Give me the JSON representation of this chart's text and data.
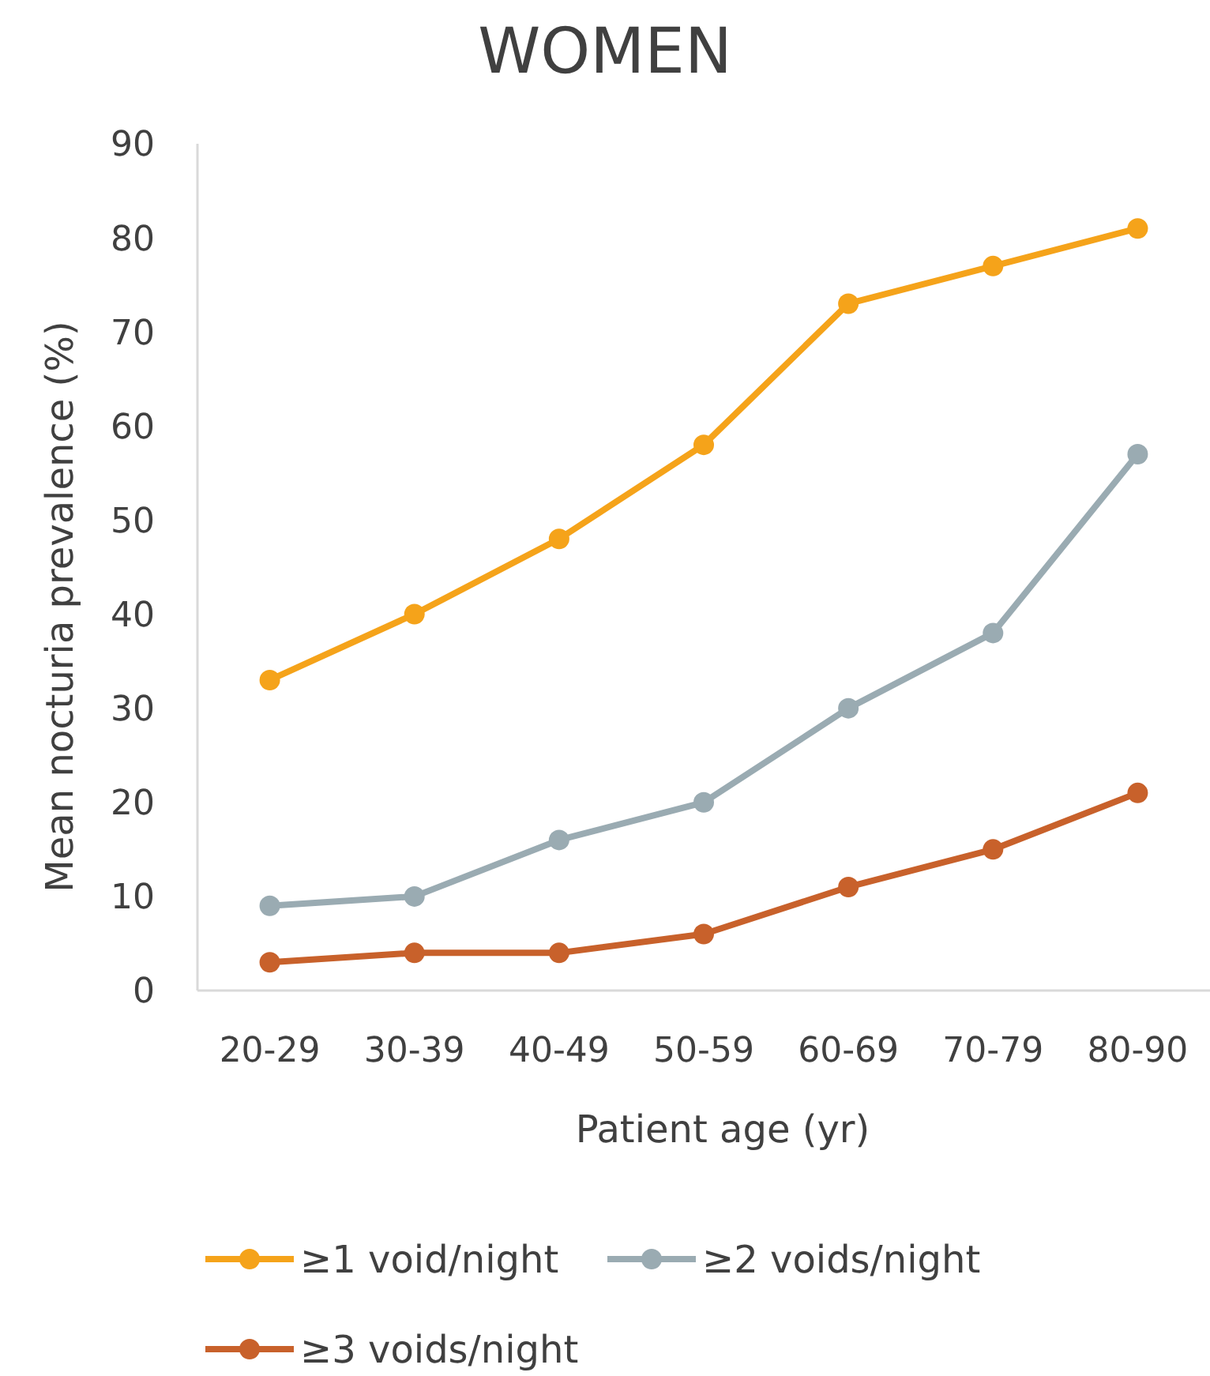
{
  "chart_data": {
    "type": "line",
    "title": "WOMEN",
    "xlabel": "Patient age (yr)",
    "ylabel": "Mean nocturia prevalence (%)",
    "categories": [
      "20-29",
      "30-39",
      "40-49",
      "50-59",
      "60-69",
      "70-79",
      "80-90"
    ],
    "ylim": [
      0,
      90
    ],
    "yticks": [
      0,
      10,
      20,
      30,
      40,
      50,
      60,
      70,
      80,
      90
    ],
    "grid": false,
    "legend": "bottom",
    "marker": "circle",
    "series": [
      {
        "name": "≥1 void/night",
        "color": "#f5a31a",
        "values": [
          33,
          40,
          48,
          58,
          73,
          77,
          81
        ]
      },
      {
        "name": "≥2 voids/night",
        "color": "#9aabb2",
        "values": [
          9,
          10,
          16,
          20,
          30,
          38,
          57
        ]
      },
      {
        "name": "≥3 voids/night",
        "color": "#c8612b",
        "values": [
          3,
          4,
          4,
          6,
          11,
          15,
          21
        ]
      }
    ]
  }
}
